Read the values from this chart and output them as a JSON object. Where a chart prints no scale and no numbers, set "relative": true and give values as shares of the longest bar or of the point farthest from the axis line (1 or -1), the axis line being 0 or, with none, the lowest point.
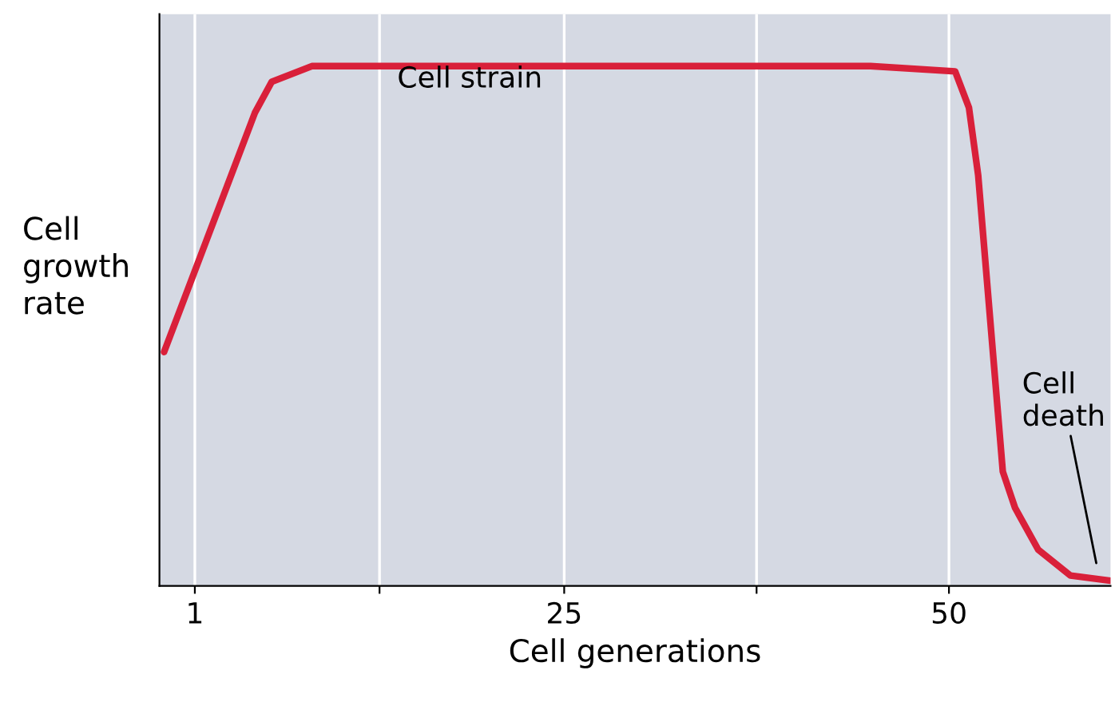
{
  "chart_data": {
    "type": "line",
    "relative": true,
    "xlabel": "Cell generations",
    "ylabel": "Cell\ngrowth\nrate",
    "xlim": [
      -1.3,
      60.5
    ],
    "xticks": [
      {
        "value": 1,
        "label": "1"
      },
      {
        "value": 13,
        "label": null
      },
      25,
      {
        "value": 37.5,
        "label": null
      },
      50
    ],
    "grid": "x",
    "legend": false,
    "series": [
      {
        "color": "#d9203a",
        "x": [
          -1.0,
          4.9,
          6,
          8.6,
          44.9,
          50.4,
          51.3,
          51.9,
          53.5,
          54.3,
          55.8,
          57.9,
          60.5
        ],
        "values": [
          0.45,
          0.91,
          0.97,
          1.0,
          1.0,
          0.99,
          0.92,
          0.79,
          0.22,
          0.15,
          0.07,
          0.02,
          0.01
        ]
      }
    ],
    "annotations": [
      "Cell strain",
      "Cell\ndeath"
    ]
  }
}
